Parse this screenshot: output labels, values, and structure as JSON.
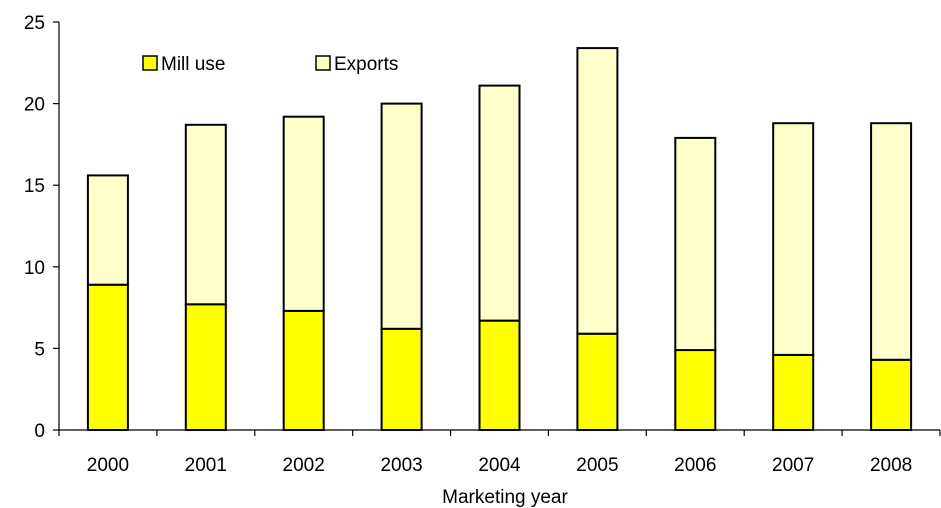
{
  "chart_data": {
    "type": "bar",
    "stacked": true,
    "title": "",
    "xlabel": "Marketing  year",
    "ylabel": "",
    "ylim": [
      0,
      25
    ],
    "yticks": [
      0,
      5,
      10,
      15,
      20,
      25
    ],
    "grid": false,
    "legend_position": "top-left",
    "categories": [
      "2000",
      "2001",
      "2002",
      "2003",
      "2004",
      "2005",
      "2006",
      "2007",
      "2008"
    ],
    "series": [
      {
        "name": "Mill use",
        "color": "#ffff00",
        "values": [
          8.9,
          7.7,
          7.3,
          6.2,
          6.7,
          5.9,
          4.9,
          4.6,
          4.3
        ]
      },
      {
        "name": "Exports",
        "color": "#ffffcc",
        "values": [
          6.7,
          11.0,
          11.9,
          13.8,
          14.4,
          17.5,
          13.0,
          14.2,
          14.5
        ]
      }
    ]
  }
}
